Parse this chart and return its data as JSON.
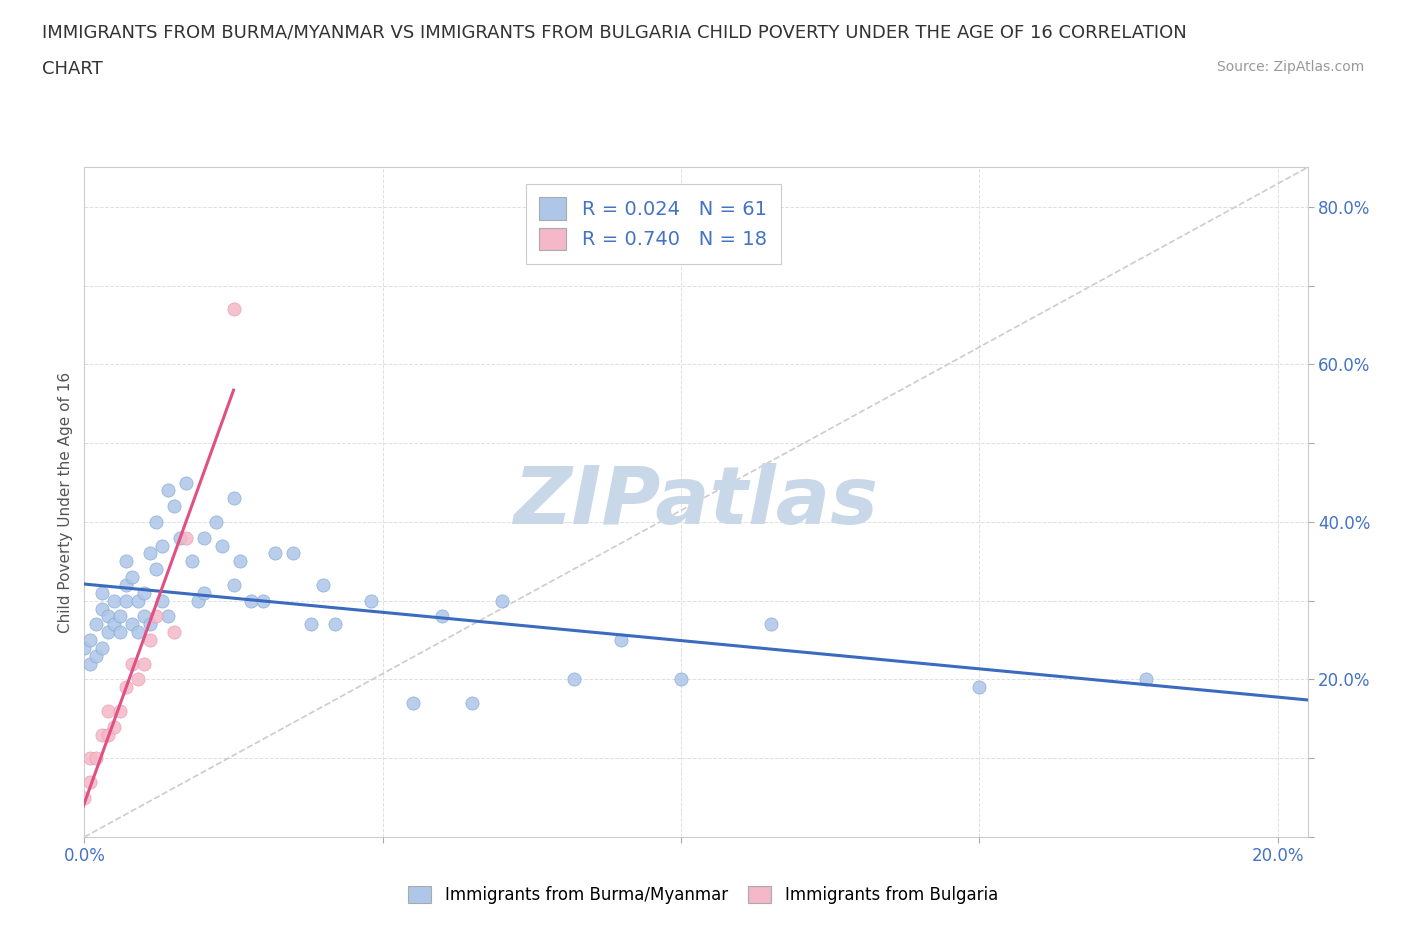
{
  "title_line1": "IMMIGRANTS FROM BURMA/MYANMAR VS IMMIGRANTS FROM BULGARIA CHILD POVERTY UNDER THE AGE OF 16 CORRELATION",
  "title_line2": "CHART",
  "source": "Source: ZipAtlas.com",
  "ylabel": "Child Poverty Under the Age of 16",
  "legend1_text": "R = 0.024   N = 61",
  "legend2_text": "R = 0.740   N = 18",
  "burma_color": "#aec6e8",
  "burma_edge_color": "#7ba7d4",
  "bulgaria_color": "#f4b8c8",
  "bulgaria_edge_color": "#e896b0",
  "burma_line_color": "#3b6bbf",
  "bulgaria_line_color": "#e05080",
  "diag_line_color": "#cccccc",
  "watermark_color": "#c8d8e8",
  "legend_text_color": "#4472c4",
  "tick_color": "#4472c4",
  "title_color": "#333333",
  "source_color": "#999999",
  "background_color": "#ffffff",
  "grid_color": "#e0e0e0",
  "burma_x": [
    0.0,
    0.001,
    0.001,
    0.002,
    0.002,
    0.003,
    0.003,
    0.003,
    0.004,
    0.004,
    0.005,
    0.005,
    0.006,
    0.006,
    0.007,
    0.007,
    0.007,
    0.008,
    0.008,
    0.009,
    0.009,
    0.01,
    0.01,
    0.011,
    0.011,
    0.012,
    0.012,
    0.013,
    0.013,
    0.014,
    0.014,
    0.015,
    0.016,
    0.017,
    0.018,
    0.019,
    0.02,
    0.02,
    0.022,
    0.023,
    0.025,
    0.025,
    0.026,
    0.028,
    0.03,
    0.032,
    0.035,
    0.038,
    0.04,
    0.042,
    0.048,
    0.055,
    0.06,
    0.065,
    0.07,
    0.082,
    0.09,
    0.1,
    0.115,
    0.15,
    0.178
  ],
  "burma_y": [
    0.24,
    0.22,
    0.25,
    0.23,
    0.27,
    0.24,
    0.29,
    0.31,
    0.26,
    0.28,
    0.27,
    0.3,
    0.26,
    0.28,
    0.3,
    0.32,
    0.35,
    0.27,
    0.33,
    0.26,
    0.3,
    0.28,
    0.31,
    0.36,
    0.27,
    0.34,
    0.4,
    0.3,
    0.37,
    0.44,
    0.28,
    0.42,
    0.38,
    0.45,
    0.35,
    0.3,
    0.38,
    0.31,
    0.4,
    0.37,
    0.32,
    0.43,
    0.35,
    0.3,
    0.3,
    0.36,
    0.36,
    0.27,
    0.32,
    0.27,
    0.3,
    0.17,
    0.28,
    0.17,
    0.3,
    0.2,
    0.25,
    0.2,
    0.27,
    0.19,
    0.2
  ],
  "bulgaria_x": [
    0.0,
    0.001,
    0.001,
    0.002,
    0.003,
    0.004,
    0.004,
    0.005,
    0.006,
    0.007,
    0.008,
    0.009,
    0.01,
    0.011,
    0.012,
    0.015,
    0.017,
    0.025
  ],
  "bulgaria_y": [
    0.05,
    0.07,
    0.1,
    0.1,
    0.13,
    0.13,
    0.16,
    0.14,
    0.16,
    0.19,
    0.22,
    0.2,
    0.22,
    0.25,
    0.28,
    0.26,
    0.38,
    0.67
  ],
  "xlim": [
    0.0,
    0.205
  ],
  "ylim": [
    0.0,
    0.85
  ],
  "xtick_positions": [
    0.0,
    0.05,
    0.1,
    0.15,
    0.2
  ],
  "xtick_labels": [
    "0.0%",
    "",
    "",
    "",
    "20.0%"
  ],
  "ytick_positions": [
    0.0,
    0.1,
    0.2,
    0.3,
    0.4,
    0.5,
    0.6,
    0.7,
    0.8
  ],
  "ytick_labels": [
    "",
    "",
    "20.0%",
    "",
    "40.0%",
    "",
    "60.0%",
    "",
    "80.0%"
  ],
  "title_fontsize": 13,
  "source_fontsize": 10,
  "tick_fontsize": 12,
  "legend_fontsize": 14,
  "ylabel_fontsize": 11,
  "watermark_fontsize": 58
}
